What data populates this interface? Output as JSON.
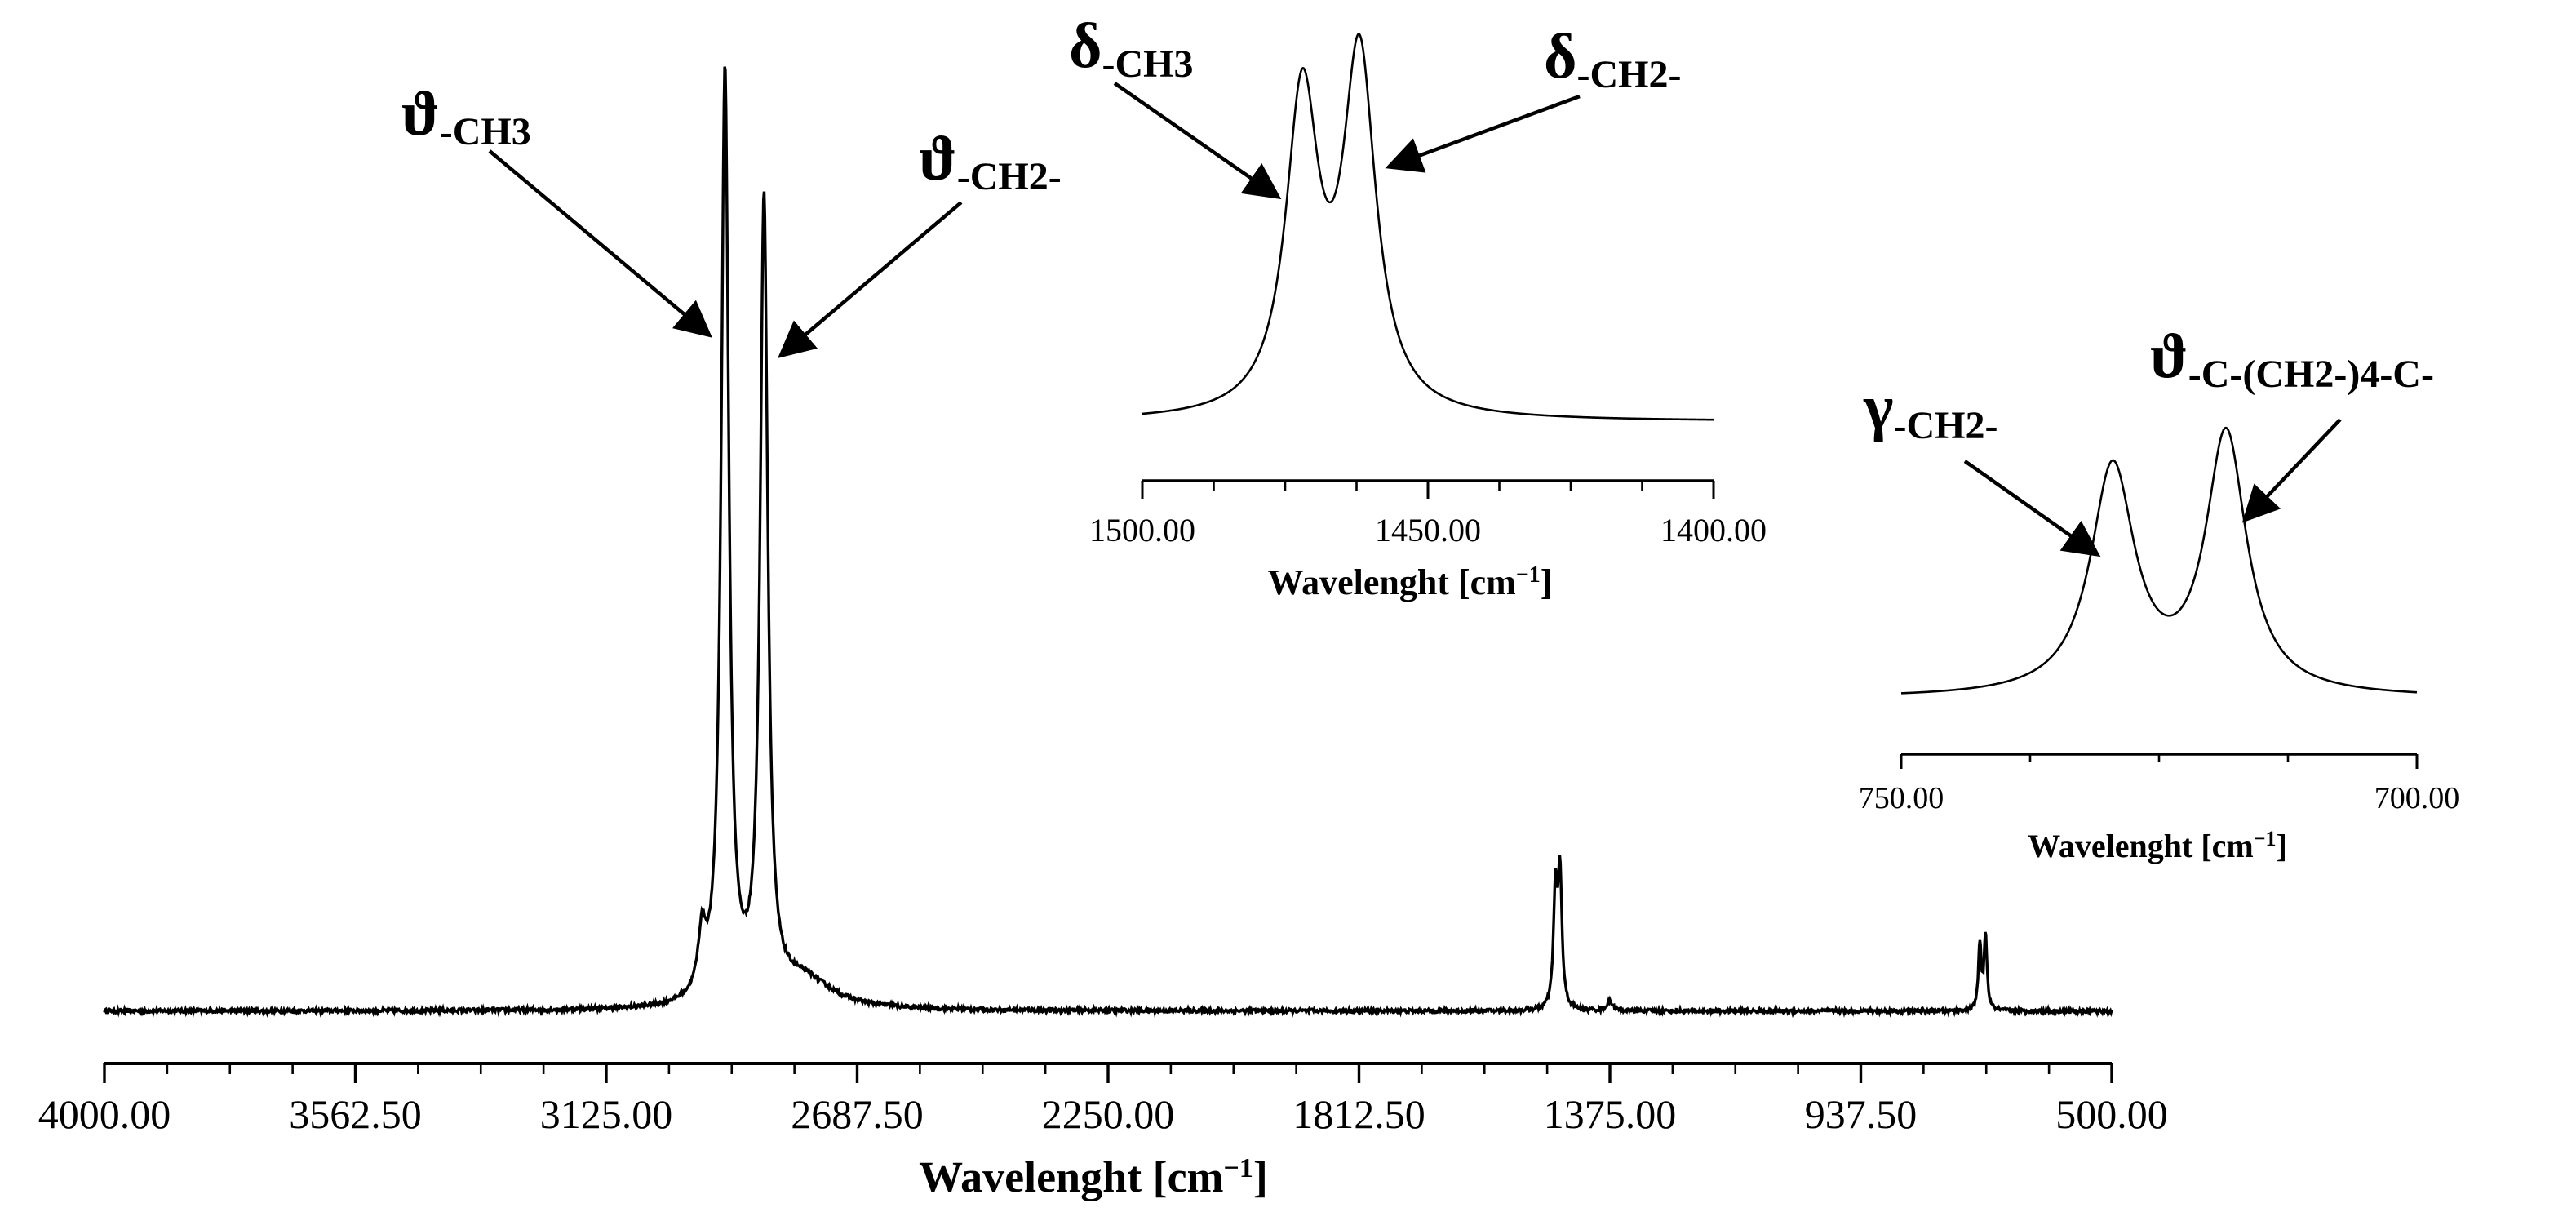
{
  "colors": {
    "line": "#000000",
    "background": "#ffffff"
  },
  "chart_data": [
    {
      "id": "main",
      "type": "line",
      "xlabel": "Wavelenght [cm",
      "xlabel_sup": "−1",
      "xlabel_close": "]",
      "ylabel": "",
      "xlim": [
        4000,
        500
      ],
      "x_reversed": true,
      "y_axis_visible": false,
      "ylim": [
        0,
        1.0
      ],
      "baseline": 0.02,
      "grid": false,
      "xticks": [
        4000,
        3562.5,
        3125,
        2687.5,
        2250,
        1812.5,
        1375,
        937.5,
        500
      ],
      "xtick_labels": [
        "4000.00",
        "3562.50",
        "3125.00",
        "2687.50",
        "2250.00",
        "1812.50",
        "1375.00",
        "937.50",
        "500.00"
      ],
      "minor_ticks_per_interval": 4,
      "peaks": [
        {
          "x": 2958,
          "height": 0.06,
          "width": 8
        },
        {
          "x": 2918,
          "height": 0.98,
          "width": 8
        },
        {
          "x": 2850,
          "height": 0.84,
          "width": 8
        },
        {
          "x": 2780,
          "height": 0.03,
          "width": 60
        },
        {
          "x": 1470,
          "height": 0.12,
          "width": 4
        },
        {
          "x": 1462,
          "height": 0.14,
          "width": 4
        },
        {
          "x": 1375,
          "height": 0.01,
          "width": 6
        },
        {
          "x": 730,
          "height": 0.07,
          "width": 3
        },
        {
          "x": 720,
          "height": 0.08,
          "width": 3
        }
      ],
      "annotations": [
        {
          "symbol": "ϑ",
          "subscript": "-CH3",
          "x": 2935,
          "y": 0.75
        },
        {
          "symbol": "ϑ",
          "subscript": "-CH2-",
          "x": 2845,
          "y": 0.72
        }
      ]
    },
    {
      "id": "inset-delta",
      "type": "line",
      "xlabel": "Wavelenght [cm",
      "xlabel_sup": "−1",
      "xlabel_close": "]",
      "ylabel": "",
      "xlim": [
        1500,
        1400
      ],
      "x_reversed": true,
      "y_axis_visible": false,
      "ylim": [
        0,
        1.0
      ],
      "baseline": 0.05,
      "grid": false,
      "xticks": [
        1500,
        1450,
        1400
      ],
      "xtick_labels": [
        "1500.00",
        "1450.00",
        "1400.00"
      ],
      "minor_ticks_per_interval": 4,
      "peaks": [
        {
          "x": 1472,
          "height": 0.82,
          "width": 3.5
        },
        {
          "x": 1462,
          "height": 0.92,
          "width": 3.5
        }
      ],
      "annotations": [
        {
          "symbol": "δ",
          "subscript": "-CH3",
          "x": 1474,
          "y": 0.62
        },
        {
          "symbol": "δ",
          "subscript": "-CH2-",
          "x": 1459,
          "y": 0.7
        }
      ]
    },
    {
      "id": "inset-gamma",
      "type": "line",
      "xlabel": "Wavelenght [cm",
      "xlabel_sup": "−1",
      "xlabel_close": "]",
      "ylabel": "",
      "xlim": [
        750,
        700
      ],
      "x_reversed": true,
      "y_axis_visible": false,
      "ylim": [
        0,
        1.0
      ],
      "baseline": 0.04,
      "grid": false,
      "xticks": [
        750,
        700
      ],
      "xtick_labels": [
        "750.00",
        "700.00"
      ],
      "minor_ticks_per_interval": 4,
      "peaks": [
        {
          "x": 729.5,
          "height": 0.77,
          "width": 2.6
        },
        {
          "x": 718.5,
          "height": 0.88,
          "width": 2.4
        }
      ],
      "annotations": [
        {
          "symbol": "γ",
          "subscript": "-CH2-",
          "x": 730.5,
          "y": 0.76
        },
        {
          "symbol": "ϑ",
          "subscript": "-C-(CH2-)4-C-",
          "x": 717.5,
          "y": 0.86
        }
      ]
    }
  ]
}
